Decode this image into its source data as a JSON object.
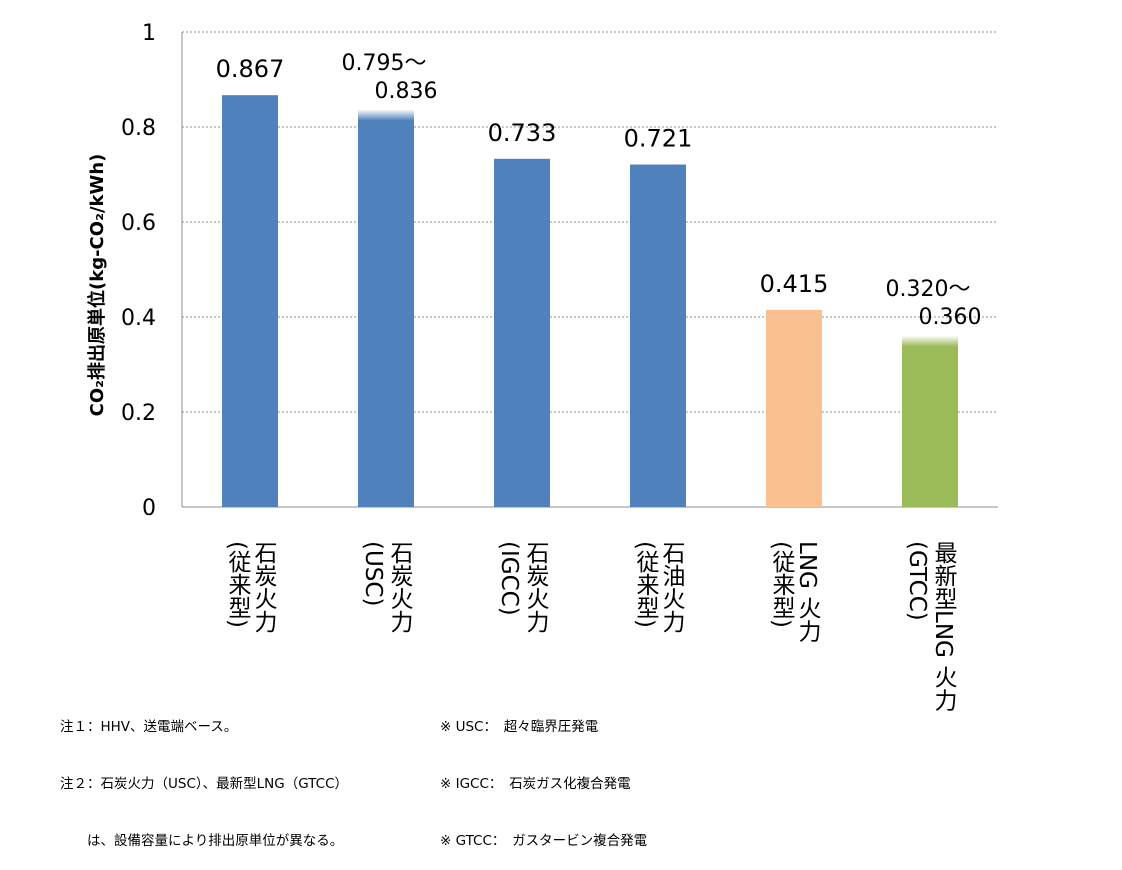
{
  "chart_data": {
    "type": "bar",
    "ylabel": "CO₂排出原単位(kg-CO₂/kWh)",
    "ylim": [
      0,
      1
    ],
    "yticks": [
      "0",
      "0.2",
      "0.4",
      "0.6",
      "0.8",
      "1"
    ],
    "grid": true,
    "categories": [
      {
        "name": "石炭火力",
        "sub": "(従来型)",
        "value": 0.867,
        "range": null,
        "color": "#4f81bd",
        "label1": "0.867",
        "label2": ""
      },
      {
        "name": "石炭火力",
        "sub": "(USC)",
        "value": 0.836,
        "range": [
          0.795,
          0.836
        ],
        "color": "#4f81bd",
        "label1": "0.795～",
        "label2": "0.836"
      },
      {
        "name": "石炭火力",
        "sub": "(IGCC)",
        "value": 0.733,
        "range": null,
        "color": "#4f81bd",
        "label1": "0.733",
        "label2": ""
      },
      {
        "name": "石油火力",
        "sub": "(従来型)",
        "value": 0.721,
        "range": null,
        "color": "#4f81bd",
        "label1": "0.721",
        "label2": ""
      },
      {
        "name": "LNG 火力",
        "sub": "(従来型)",
        "value": 0.415,
        "range": null,
        "color": "#fac090",
        "label1": "0.415",
        "label2": ""
      },
      {
        "name": "最新型LNG 火力",
        "sub": "(GTCC)",
        "value": 0.36,
        "range": [
          0.32,
          0.36
        ],
        "color": "#9bbb59",
        "label1": "0.320～",
        "label2": "0.360"
      }
    ]
  },
  "notes": {
    "left": [
      "注１：HHV、送電端ベース。",
      "注２：石炭火力（USC）、最新型LNG（GTCC）",
      "　　は、設備容量により排出原単位が異なる。"
    ],
    "right": [
      "※ USC：　超々臨界圧発電",
      "※ IGCC：　石炭ガス化複合発電",
      "※ GTCC：　ガスタービン複合発電"
    ]
  }
}
